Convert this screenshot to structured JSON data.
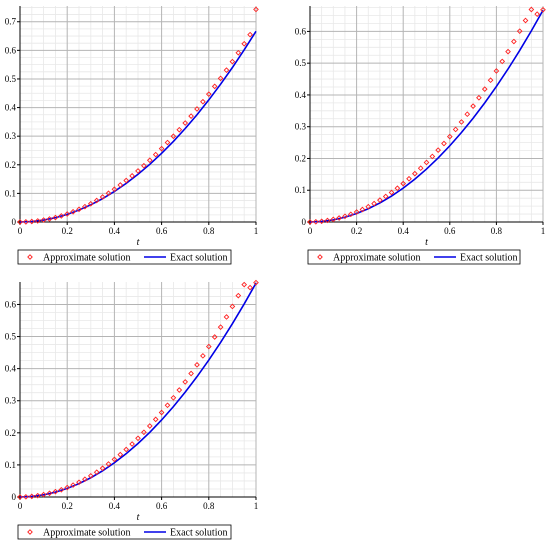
{
  "chart_data": [
    {
      "type": "line",
      "xlabel": "t",
      "ylabel": "",
      "xlim": [
        0,
        1
      ],
      "ylim": [
        0,
        0.755
      ],
      "xticks": [
        "0",
        "0.2",
        "0.4",
        "0.6",
        "0.8",
        "1"
      ],
      "yticks": [
        "0",
        "0.1",
        "0.2",
        "0.3",
        "0.4",
        "0.5",
        "0.6",
        "0.7"
      ],
      "grid": true,
      "legend_position": "bottom",
      "series": [
        {
          "name": "Approximate solution",
          "style": "diamond-markers",
          "color": "#ff2020",
          "x": [
            0,
            0.025,
            0.05,
            0.075,
            0.1,
            0.125,
            0.15,
            0.175,
            0.2,
            0.225,
            0.25,
            0.275,
            0.3,
            0.325,
            0.35,
            0.375,
            0.4,
            0.425,
            0.45,
            0.475,
            0.5,
            0.525,
            0.55,
            0.575,
            0.6,
            0.625,
            0.65,
            0.675,
            0.7,
            0.725,
            0.75,
            0.775,
            0.8,
            0.825,
            0.85,
            0.875,
            0.9,
            0.925,
            0.95,
            0.975,
            1
          ],
          "y": [
            0,
            0.0004,
            0.0017,
            0.0038,
            0.0068,
            0.0106,
            0.0155,
            0.0213,
            0.0281,
            0.0358,
            0.0443,
            0.0535,
            0.0638,
            0.0751,
            0.0874,
            0.1005,
            0.1146,
            0.1295,
            0.1451,
            0.1614,
            0.1785,
            0.1967,
            0.2158,
            0.2356,
            0.2563,
            0.2777,
            0.2998,
            0.3225,
            0.3459,
            0.3701,
            0.3951,
            0.4205,
            0.4468,
            0.4741,
            0.5021,
            0.5308,
            0.5606,
            0.5914,
            0.6229,
            0.6548,
            0.743
          ]
        },
        {
          "name": "Exact solution",
          "style": "line",
          "color": "#0000e6",
          "x": [
            0,
            0.05,
            0.1,
            0.15,
            0.2,
            0.25,
            0.3,
            0.35,
            0.4,
            0.45,
            0.5,
            0.55,
            0.6,
            0.65,
            0.7,
            0.75,
            0.8,
            0.85,
            0.9,
            0.95,
            1
          ],
          "y": [
            0,
            0.0017,
            0.0067,
            0.015,
            0.0267,
            0.0417,
            0.06,
            0.0817,
            0.1067,
            0.135,
            0.1667,
            0.2017,
            0.24,
            0.2817,
            0.3267,
            0.375,
            0.4267,
            0.4817,
            0.54,
            0.6017,
            0.6667
          ]
        }
      ]
    },
    {
      "type": "line",
      "xlabel": "t",
      "ylabel": "",
      "xlim": [
        0,
        1
      ],
      "ylim": [
        0,
        0.68
      ],
      "xticks": [
        "0",
        "0.2",
        "0.4",
        "0.6",
        "0.8",
        "1"
      ],
      "yticks": [
        "0",
        "0.1",
        "0.2",
        "0.3",
        "0.4",
        "0.5",
        "0.6"
      ],
      "grid": true,
      "legend_position": "bottom",
      "series": [
        {
          "name": "Approximate solution",
          "style": "diamond-markers",
          "color": "#ff2020",
          "x": [
            0,
            0.025,
            0.05,
            0.075,
            0.1,
            0.125,
            0.15,
            0.175,
            0.2,
            0.225,
            0.25,
            0.275,
            0.3,
            0.325,
            0.35,
            0.375,
            0.4,
            0.425,
            0.45,
            0.475,
            0.5,
            0.525,
            0.55,
            0.575,
            0.6,
            0.625,
            0.65,
            0.675,
            0.7,
            0.725,
            0.75,
            0.775,
            0.8,
            0.825,
            0.85,
            0.875,
            0.9,
            0.925,
            0.95,
            0.975,
            1
          ],
          "y": [
            0,
            0.0006,
            0.0022,
            0.0048,
            0.0083,
            0.0126,
            0.0179,
            0.0242,
            0.0313,
            0.0393,
            0.0482,
            0.058,
            0.0688,
            0.0804,
            0.0929,
            0.1064,
            0.1208,
            0.1361,
            0.1523,
            0.1694,
            0.1875,
            0.2064,
            0.2263,
            0.2471,
            0.2688,
            0.2914,
            0.3149,
            0.3394,
            0.3648,
            0.3911,
            0.4183,
            0.4464,
            0.4755,
            0.5055,
            0.5363,
            0.5681,
            0.6008,
            0.6344,
            0.669,
            0.6544,
            0.668
          ]
        },
        {
          "name": "Exact solution",
          "style": "line",
          "color": "#0000e6",
          "x": [
            0,
            0.05,
            0.1,
            0.15,
            0.2,
            0.25,
            0.3,
            0.35,
            0.4,
            0.45,
            0.5,
            0.55,
            0.6,
            0.65,
            0.7,
            0.75,
            0.8,
            0.85,
            0.9,
            0.95,
            1
          ],
          "y": [
            0,
            0.0017,
            0.0067,
            0.015,
            0.0267,
            0.0417,
            0.06,
            0.0817,
            0.1067,
            0.135,
            0.1667,
            0.2017,
            0.24,
            0.2817,
            0.3267,
            0.375,
            0.4267,
            0.4817,
            0.54,
            0.6017,
            0.6667
          ]
        }
      ]
    },
    {
      "type": "line",
      "xlabel": "t",
      "ylabel": "",
      "xlim": [
        0,
        1
      ],
      "ylim": [
        0,
        0.67
      ],
      "xticks": [
        "0",
        "0.2",
        "0.4",
        "0.6",
        "0.8",
        "1"
      ],
      "yticks": [
        "0",
        "0.1",
        "0.2",
        "0.3",
        "0.4",
        "0.5",
        "0.6"
      ],
      "grid": true,
      "legend_position": "bottom",
      "series": [
        {
          "name": "Approximate solution",
          "style": "diamond-markers",
          "color": "#ff2020",
          "x": [
            0,
            0.025,
            0.05,
            0.075,
            0.1,
            0.125,
            0.15,
            0.175,
            0.2,
            0.225,
            0.25,
            0.275,
            0.3,
            0.325,
            0.35,
            0.375,
            0.4,
            0.425,
            0.45,
            0.475,
            0.5,
            0.525,
            0.55,
            0.575,
            0.6,
            0.625,
            0.65,
            0.675,
            0.7,
            0.725,
            0.75,
            0.775,
            0.8,
            0.825,
            0.85,
            0.875,
            0.9,
            0.925,
            0.95,
            0.975,
            1
          ],
          "y": [
            0,
            0.0005,
            0.0019,
            0.0042,
            0.0075,
            0.0116,
            0.0166,
            0.0225,
            0.0294,
            0.0371,
            0.0458,
            0.0554,
            0.0659,
            0.0773,
            0.0896,
            0.1029,
            0.1171,
            0.1321,
            0.1481,
            0.165,
            0.1829,
            0.2016,
            0.2213,
            0.2419,
            0.2634,
            0.2858,
            0.3091,
            0.3334,
            0.3586,
            0.3848,
            0.4119,
            0.4399,
            0.4688,
            0.4986,
            0.5294,
            0.5611,
            0.5938,
            0.6274,
            0.6619,
            0.6526,
            0.668
          ]
        },
        {
          "name": "Exact solution",
          "style": "line",
          "color": "#0000e6",
          "x": [
            0,
            0.05,
            0.1,
            0.15,
            0.2,
            0.25,
            0.3,
            0.35,
            0.4,
            0.45,
            0.5,
            0.55,
            0.6,
            0.65,
            0.7,
            0.75,
            0.8,
            0.85,
            0.9,
            0.95,
            1
          ],
          "y": [
            0,
            0.0017,
            0.0067,
            0.015,
            0.0267,
            0.0417,
            0.06,
            0.0817,
            0.1067,
            0.135,
            0.1667,
            0.2017,
            0.24,
            0.2817,
            0.3267,
            0.375,
            0.4267,
            0.4817,
            0.54,
            0.6017,
            0.6667
          ]
        }
      ]
    }
  ]
}
